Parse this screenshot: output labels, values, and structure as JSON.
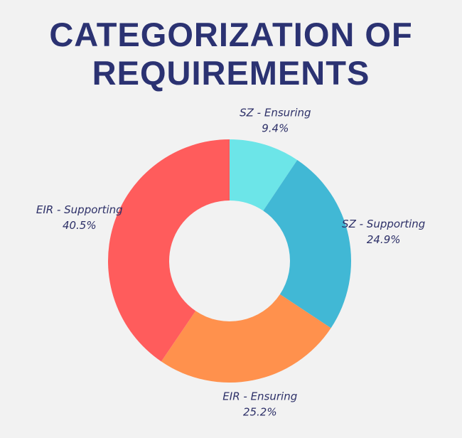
{
  "chart_data": {
    "type": "donut",
    "title": "CATEGORIZATION OF REQUIREMENTS",
    "categories": [
      "SZ - Ensuring",
      "SZ - Supporting",
      "EIR - Ensuring",
      "EIR - Supporting"
    ],
    "values": [
      9.4,
      24.9,
      25.2,
      40.5
    ],
    "value_labels": [
      "9.4%",
      "24.9%",
      "25.2%",
      "40.5%"
    ],
    "colors": [
      "#6ce5e8",
      "#41b8d5",
      "#ff914d",
      "#ff5c5c"
    ]
  }
}
